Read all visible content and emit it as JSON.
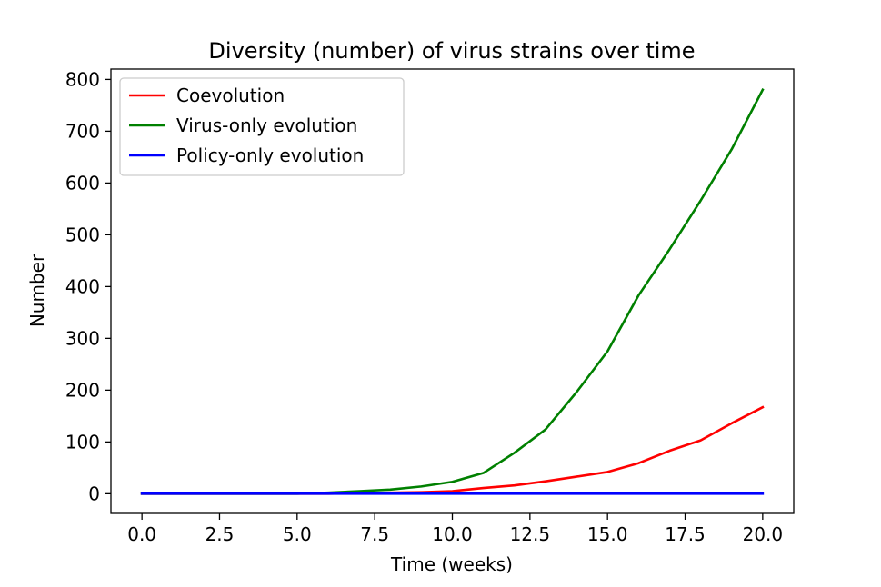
{
  "chart_data": {
    "type": "line",
    "title": "Diversity (number) of virus strains over time",
    "xlabel": "Time (weeks)",
    "ylabel": "Number",
    "xlim": [
      -1,
      21
    ],
    "ylim": [
      -38,
      820
    ],
    "xticks": [
      0.0,
      2.5,
      5.0,
      7.5,
      10.0,
      12.5,
      15.0,
      17.5,
      20.0
    ],
    "xtick_labels": [
      "0.0",
      "2.5",
      "5.0",
      "7.5",
      "10.0",
      "12.5",
      "15.0",
      "17.5",
      "20.0"
    ],
    "yticks": [
      0,
      100,
      200,
      300,
      400,
      500,
      600,
      700,
      800
    ],
    "ytick_labels": [
      "0",
      "100",
      "200",
      "300",
      "400",
      "500",
      "600",
      "700",
      "800"
    ],
    "grid": false,
    "legend_position": "top-left",
    "x": [
      0,
      1,
      2,
      3,
      4,
      5,
      6,
      7,
      8,
      9,
      10,
      11,
      12,
      13,
      14,
      15,
      16,
      17,
      18,
      19,
      20
    ],
    "series": [
      {
        "name": "Coevolution",
        "color": "#ff0000",
        "values": [
          0,
          0,
          0,
          0,
          0,
          0,
          0,
          1,
          2,
          3,
          5,
          11,
          16,
          24,
          33,
          42,
          59,
          83,
          103,
          136,
          167
        ]
      },
      {
        "name": "Virus-only evolution",
        "color": "#008000",
        "values": [
          0,
          0,
          0,
          0,
          0,
          0,
          2,
          5,
          8,
          14,
          23,
          40,
          79,
          124,
          196,
          275,
          383,
          472,
          566,
          665,
          780
        ]
      },
      {
        "name": "Policy-only evolution",
        "color": "#0000ff",
        "values": [
          0,
          0,
          0,
          0,
          0,
          0,
          0,
          0,
          0,
          0,
          0,
          0,
          0,
          0,
          0,
          0,
          0,
          0,
          0,
          0,
          0
        ]
      }
    ]
  }
}
